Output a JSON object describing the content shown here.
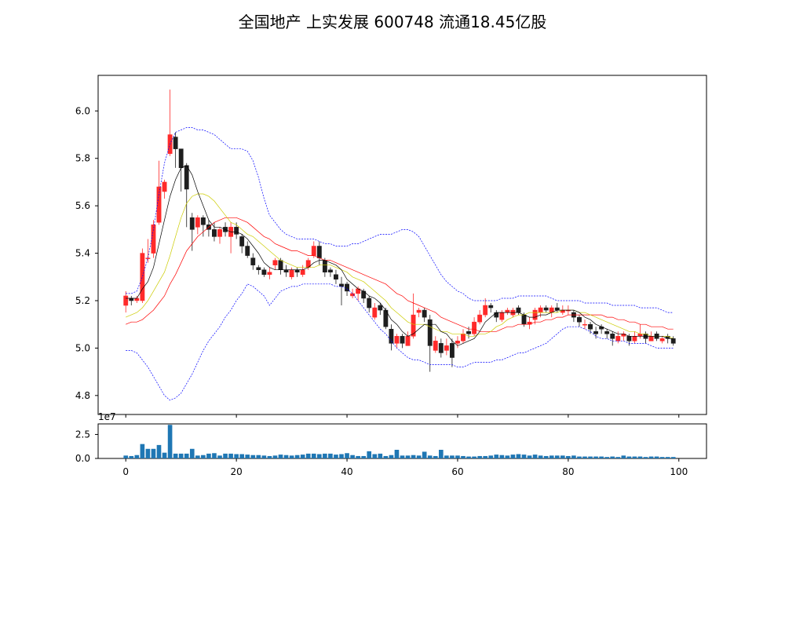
{
  "title": "全国地产 上实发展 600748 流通18.45亿股",
  "colors": {
    "up": "#ff2a2a",
    "down": "#1e1e1e",
    "ma5": "#000000",
    "ma10": "#cccc00",
    "ma20": "#ff0000",
    "boll": "#0000ff",
    "volume": "#1f77b4"
  },
  "chart_data": [
    {
      "type": "candlestick",
      "xlim": [
        -5,
        105
      ],
      "ylim": [
        4.72,
        6.15
      ],
      "y_ticks": [
        "4.8",
        "5.0",
        "5.2",
        "5.4",
        "5.6",
        "5.8",
        "6.0"
      ],
      "x_ticks": [
        0,
        20,
        40,
        60,
        80,
        100
      ],
      "close": [
        5.22,
        5.2,
        5.21,
        5.4,
        5.38,
        5.52,
        5.68,
        5.7,
        5.9,
        5.84,
        5.76,
        5.67,
        5.5,
        5.55,
        5.52,
        5.5,
        5.47,
        5.5,
        5.49,
        5.51,
        5.48,
        5.43,
        5.39,
        5.35,
        5.33,
        5.31,
        5.32,
        5.37,
        5.33,
        5.32,
        5.33,
        5.32,
        5.33,
        5.37,
        5.43,
        5.38,
        5.32,
        5.32,
        5.29,
        5.26,
        5.24,
        5.23,
        5.25,
        5.21,
        5.17,
        5.17,
        5.16,
        5.09,
        5.02,
        5.05,
        5.02,
        5.05,
        5.14,
        5.16,
        5.13,
        5.01,
        5.03,
        4.98,
        5.01,
        4.96,
        5.03,
        5.06,
        5.06,
        5.11,
        5.14,
        5.18,
        5.17,
        5.13,
        5.15,
        5.16,
        5.16,
        5.15,
        5.1,
        5.11,
        5.16,
        5.17,
        5.16,
        5.17,
        5.16,
        5.16,
        5.16,
        5.13,
        5.11,
        5.1,
        5.08,
        5.06,
        5.08,
        5.06,
        5.04,
        5.05,
        5.06,
        5.03,
        5.05,
        5.06,
        5.04,
        5.05,
        5.04,
        5.04,
        5.04,
        5.02
      ],
      "open": [
        5.18,
        5.21,
        5.2,
        5.2,
        5.38,
        5.4,
        5.53,
        5.66,
        5.82,
        5.89,
        5.84,
        5.77,
        5.55,
        5.51,
        5.55,
        5.52,
        5.5,
        5.47,
        5.51,
        5.47,
        5.51,
        5.47,
        5.43,
        5.38,
        5.34,
        5.33,
        5.31,
        5.35,
        5.37,
        5.33,
        5.3,
        5.33,
        5.31,
        5.34,
        5.39,
        5.43,
        5.37,
        5.33,
        5.31,
        5.27,
        5.27,
        5.22,
        5.23,
        5.24,
        5.21,
        5.13,
        5.18,
        5.16,
        5.08,
        5.02,
        5.05,
        5.01,
        5.05,
        5.15,
        5.16,
        5.12,
        4.99,
        5.02,
        4.99,
        5.02,
        5.02,
        5.03,
        5.07,
        5.06,
        5.11,
        5.14,
        5.18,
        5.15,
        5.12,
        5.15,
        5.14,
        5.17,
        5.14,
        5.1,
        5.12,
        5.15,
        5.17,
        5.15,
        5.17,
        5.15,
        5.16,
        5.15,
        5.13,
        5.1,
        5.1,
        5.07,
        5.09,
        5.07,
        5.06,
        5.03,
        5.05,
        5.05,
        5.03,
        5.05,
        5.06,
        5.03,
        5.06,
        5.03,
        5.05,
        5.04
      ],
      "high": [
        5.24,
        5.22,
        5.22,
        5.42,
        5.46,
        5.54,
        5.79,
        5.71,
        6.09,
        5.91,
        5.84,
        5.78,
        5.57,
        5.56,
        5.56,
        5.54,
        5.53,
        5.51,
        5.53,
        5.53,
        5.53,
        5.48,
        5.45,
        5.4,
        5.35,
        5.34,
        5.34,
        5.38,
        5.38,
        5.35,
        5.34,
        5.34,
        5.35,
        5.38,
        5.45,
        5.45,
        5.38,
        5.34,
        5.33,
        5.3,
        5.28,
        5.25,
        5.26,
        5.25,
        5.22,
        5.19,
        5.19,
        5.17,
        5.1,
        5.06,
        5.06,
        5.07,
        5.23,
        5.17,
        5.17,
        5.14,
        5.05,
        5.04,
        5.04,
        5.04,
        5.05,
        5.08,
        5.09,
        5.13,
        5.16,
        5.21,
        5.19,
        5.16,
        5.16,
        5.17,
        5.17,
        5.18,
        5.15,
        5.13,
        5.17,
        5.18,
        5.18,
        5.18,
        5.19,
        5.18,
        5.18,
        5.16,
        5.14,
        5.12,
        5.11,
        5.09,
        5.1,
        5.08,
        5.07,
        5.07,
        5.07,
        5.06,
        5.07,
        5.1,
        5.07,
        5.07,
        5.07,
        5.05,
        5.06,
        5.05
      ],
      "low": [
        5.15,
        5.18,
        5.19,
        5.19,
        5.36,
        5.38,
        5.52,
        5.63,
        5.81,
        5.76,
        5.66,
        5.51,
        5.41,
        5.48,
        5.47,
        5.47,
        5.45,
        5.44,
        5.47,
        5.4,
        5.46,
        5.4,
        5.38,
        5.33,
        5.31,
        5.3,
        5.29,
        5.33,
        5.31,
        5.3,
        5.29,
        5.3,
        5.3,
        5.33,
        5.38,
        5.35,
        5.3,
        5.3,
        5.27,
        5.18,
        5.22,
        5.21,
        5.2,
        5.19,
        5.15,
        5.12,
        5.14,
        5.08,
        4.99,
        5.0,
        5.0,
        5.01,
        5.04,
        5.13,
        5.11,
        4.9,
        4.98,
        4.96,
        4.97,
        4.92,
        5.0,
        5.02,
        5.04,
        5.05,
        5.1,
        5.13,
        5.15,
        5.11,
        5.11,
        5.14,
        5.13,
        5.14,
        5.09,
        5.08,
        5.1,
        5.13,
        5.15,
        5.13,
        5.15,
        5.14,
        5.14,
        5.11,
        5.09,
        5.08,
        5.06,
        5.04,
        5.06,
        5.04,
        5.01,
        5.02,
        5.03,
        5.01,
        5.02,
        5.04,
        5.02,
        5.03,
        5.03,
        5.02,
        5.02,
        5.01
      ],
      "ma5": [
        5.21,
        5.21,
        5.21,
        5.25,
        5.28,
        5.34,
        5.44,
        5.54,
        5.64,
        5.71,
        5.76,
        5.77,
        5.73,
        5.66,
        5.6,
        5.54,
        5.51,
        5.51,
        5.5,
        5.49,
        5.49,
        5.48,
        5.46,
        5.43,
        5.4,
        5.36,
        5.34,
        5.33,
        5.33,
        5.33,
        5.33,
        5.33,
        5.33,
        5.34,
        5.36,
        5.37,
        5.37,
        5.36,
        5.35,
        5.33,
        5.29,
        5.27,
        5.25,
        5.24,
        5.22,
        5.21,
        5.19,
        5.16,
        5.12,
        5.1,
        5.07,
        5.05,
        5.06,
        5.08,
        5.1,
        5.1,
        5.1,
        5.07,
        5.06,
        5.03,
        5.01,
        5.02,
        5.03,
        5.04,
        5.07,
        5.11,
        5.13,
        5.15,
        5.15,
        5.15,
        5.15,
        5.15,
        5.14,
        5.13,
        5.13,
        5.14,
        5.14,
        5.15,
        5.16,
        5.16,
        5.16,
        5.16,
        5.15,
        5.13,
        5.12,
        5.1,
        5.09,
        5.08,
        5.07,
        5.06,
        5.06,
        5.05,
        5.05,
        5.05,
        5.05,
        5.05,
        5.05,
        5.05,
        5.04,
        5.04
      ],
      "ma10": [
        5.13,
        5.14,
        5.15,
        5.17,
        5.2,
        5.24,
        5.28,
        5.32,
        5.39,
        5.47,
        5.55,
        5.61,
        5.64,
        5.65,
        5.65,
        5.64,
        5.62,
        5.59,
        5.56,
        5.53,
        5.52,
        5.5,
        5.48,
        5.47,
        5.45,
        5.43,
        5.41,
        5.39,
        5.37,
        5.36,
        5.35,
        5.34,
        5.34,
        5.34,
        5.34,
        5.35,
        5.35,
        5.35,
        5.34,
        5.33,
        5.32,
        5.3,
        5.29,
        5.28,
        5.26,
        5.24,
        5.22,
        5.2,
        5.17,
        5.15,
        5.13,
        5.11,
        5.1,
        5.1,
        5.1,
        5.09,
        5.08,
        5.07,
        5.07,
        5.06,
        5.06,
        5.06,
        5.05,
        5.05,
        5.06,
        5.06,
        5.07,
        5.09,
        5.1,
        5.12,
        5.13,
        5.14,
        5.14,
        5.15,
        5.15,
        5.15,
        5.15,
        5.15,
        5.15,
        5.16,
        5.16,
        5.16,
        5.15,
        5.15,
        5.14,
        5.13,
        5.12,
        5.11,
        5.1,
        5.09,
        5.08,
        5.07,
        5.07,
        5.06,
        5.06,
        5.05,
        5.05,
        5.05,
        5.05,
        5.04
      ],
      "ma20": [
        5.1,
        5.11,
        5.11,
        5.12,
        5.14,
        5.16,
        5.19,
        5.22,
        5.27,
        5.31,
        5.36,
        5.41,
        5.44,
        5.47,
        5.49,
        5.51,
        5.53,
        5.54,
        5.55,
        5.55,
        5.55,
        5.54,
        5.53,
        5.51,
        5.49,
        5.47,
        5.46,
        5.44,
        5.43,
        5.42,
        5.41,
        5.41,
        5.4,
        5.39,
        5.39,
        5.38,
        5.37,
        5.37,
        5.36,
        5.35,
        5.34,
        5.33,
        5.32,
        5.31,
        5.3,
        5.29,
        5.28,
        5.27,
        5.25,
        5.23,
        5.22,
        5.2,
        5.19,
        5.18,
        5.17,
        5.16,
        5.15,
        5.13,
        5.12,
        5.11,
        5.1,
        5.09,
        5.08,
        5.08,
        5.07,
        5.07,
        5.07,
        5.07,
        5.08,
        5.09,
        5.09,
        5.1,
        5.1,
        5.1,
        5.11,
        5.11,
        5.12,
        5.12,
        5.13,
        5.13,
        5.14,
        5.14,
        5.14,
        5.14,
        5.14,
        5.14,
        5.14,
        5.13,
        5.13,
        5.12,
        5.12,
        5.11,
        5.11,
        5.1,
        5.1,
        5.09,
        5.09,
        5.09,
        5.08,
        5.08
      ],
      "boll_upper": [
        5.23,
        5.23,
        5.24,
        5.3,
        5.38,
        5.5,
        5.65,
        5.78,
        5.86,
        5.91,
        5.92,
        5.93,
        5.93,
        5.92,
        5.92,
        5.91,
        5.9,
        5.88,
        5.86,
        5.84,
        5.84,
        5.84,
        5.83,
        5.79,
        5.72,
        5.63,
        5.56,
        5.53,
        5.5,
        5.48,
        5.47,
        5.46,
        5.46,
        5.46,
        5.46,
        5.45,
        5.44,
        5.44,
        5.43,
        5.43,
        5.43,
        5.44,
        5.44,
        5.45,
        5.46,
        5.47,
        5.48,
        5.48,
        5.48,
        5.49,
        5.5,
        5.5,
        5.49,
        5.47,
        5.43,
        5.39,
        5.35,
        5.31,
        5.28,
        5.26,
        5.24,
        5.23,
        5.21,
        5.2,
        5.2,
        5.2,
        5.2,
        5.2,
        5.21,
        5.21,
        5.21,
        5.22,
        5.22,
        5.22,
        5.22,
        5.22,
        5.22,
        5.21,
        5.2,
        5.2,
        5.2,
        5.2,
        5.2,
        5.19,
        5.19,
        5.19,
        5.19,
        5.19,
        5.18,
        5.18,
        5.18,
        5.18,
        5.18,
        5.17,
        5.17,
        5.17,
        5.17,
        5.16,
        5.15,
        5.15
      ],
      "boll_lower": [
        4.99,
        4.99,
        4.98,
        4.95,
        4.92,
        4.88,
        4.84,
        4.8,
        4.78,
        4.79,
        4.81,
        4.85,
        4.89,
        4.94,
        4.99,
        5.03,
        5.06,
        5.09,
        5.13,
        5.16,
        5.2,
        5.23,
        5.27,
        5.26,
        5.24,
        5.22,
        5.18,
        5.21,
        5.24,
        5.25,
        5.26,
        5.26,
        5.27,
        5.27,
        5.27,
        5.27,
        5.27,
        5.27,
        5.26,
        5.26,
        5.25,
        5.23,
        5.2,
        5.17,
        5.14,
        5.11,
        5.08,
        5.06,
        5.03,
        5.0,
        4.98,
        4.96,
        4.95,
        4.95,
        4.94,
        4.93,
        4.93,
        4.93,
        4.93,
        4.93,
        4.92,
        4.92,
        4.93,
        4.94,
        4.94,
        4.94,
        4.94,
        4.95,
        4.95,
        4.96,
        4.97,
        4.98,
        4.98,
        4.99,
        5.0,
        5.01,
        5.02,
        5.04,
        5.06,
        5.08,
        5.09,
        5.09,
        5.09,
        5.08,
        5.07,
        5.05,
        5.04,
        5.04,
        5.03,
        5.03,
        5.03,
        5.02,
        5.02,
        5.02,
        5.02,
        5.01,
        5.0,
        5.0,
        5.0,
        5.0
      ]
    },
    {
      "type": "bar",
      "xlim": [
        -5,
        105
      ],
      "ylim": [
        0,
        3.6
      ],
      "y_ticks": [
        "0.0",
        "2.5"
      ],
      "x_ticks": [
        "0",
        "20",
        "40",
        "60",
        "80",
        "100"
      ],
      "offset_label": "1e7",
      "values": [
        0.3,
        0.25,
        0.35,
        1.5,
        1.0,
        1.0,
        1.4,
        0.6,
        3.5,
        0.5,
        0.5,
        0.5,
        1.0,
        0.3,
        0.35,
        0.5,
        0.55,
        0.3,
        0.5,
        0.5,
        0.45,
        0.45,
        0.4,
        0.35,
        0.35,
        0.3,
        0.25,
        0.3,
        0.4,
        0.35,
        0.3,
        0.35,
        0.4,
        0.5,
        0.5,
        0.45,
        0.5,
        0.5,
        0.4,
        0.45,
        0.55,
        0.35,
        0.25,
        0.25,
        0.75,
        0.45,
        0.5,
        0.25,
        0.35,
        0.9,
        0.3,
        0.3,
        0.35,
        0.3,
        0.7,
        0.3,
        0.25,
        0.9,
        0.3,
        0.3,
        0.3,
        0.25,
        0.2,
        0.2,
        0.25,
        0.25,
        0.3,
        0.4,
        0.35,
        0.3,
        0.4,
        0.45,
        0.4,
        0.3,
        0.4,
        0.3,
        0.25,
        0.3,
        0.3,
        0.3,
        0.25,
        0.3,
        0.2,
        0.2,
        0.2,
        0.2,
        0.2,
        0.15,
        0.2,
        0.15,
        0.3,
        0.2,
        0.2,
        0.2,
        0.15,
        0.2,
        0.2,
        0.15,
        0.15,
        0.15
      ]
    }
  ]
}
